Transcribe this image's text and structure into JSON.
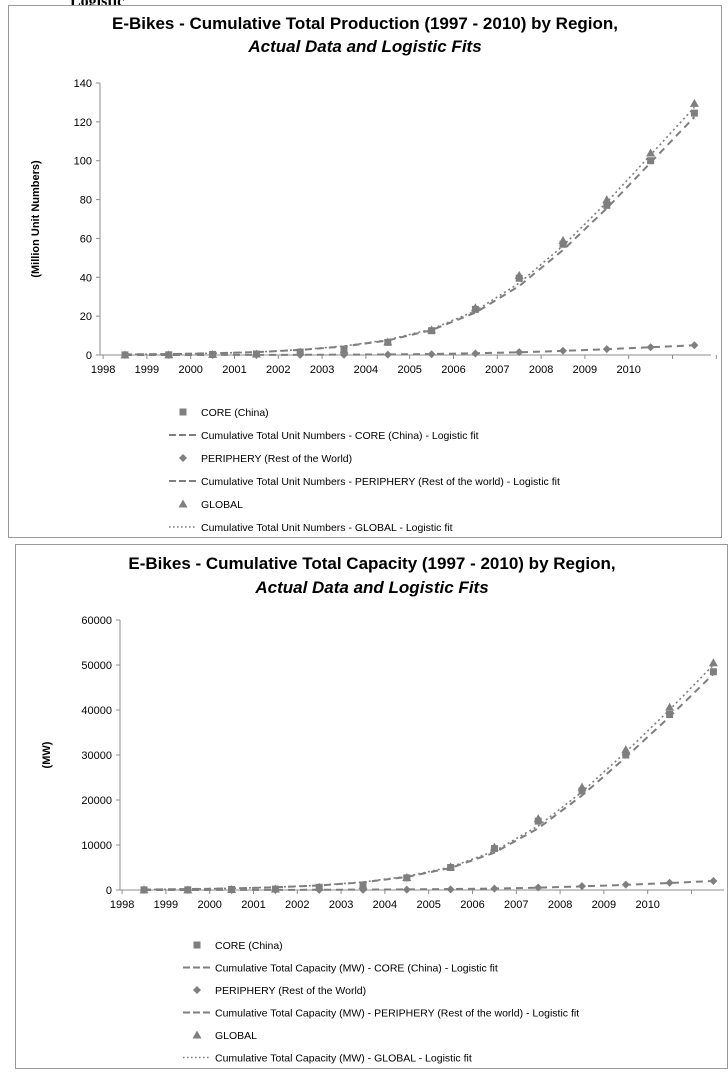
{
  "page": {
    "top_cut_text": "Logistic"
  },
  "charts": [
    {
      "title_line1": "E-Bikes - Cumulative Total Production (1997 - 2010) by Region,",
      "title_line2": "Actual Data and Logistic Fits",
      "ylabel": "(Million Unit Numbers)",
      "legend": [
        {
          "label": "CORE (China)",
          "kind": "square"
        },
        {
          "label": "Cumulative Total Unit Numbers - CORE (China) - Logistic fit",
          "kind": "dash"
        },
        {
          "label": "PERIPHERY (Rest of the World)",
          "kind": "diamond"
        },
        {
          "label": "Cumulative Total Unit Numbers - PERIPHERY (Rest of the world) - Logistic fit",
          "kind": "dash"
        },
        {
          "label": "GLOBAL",
          "kind": "triangle"
        },
        {
          "label": "Cumulative Total Unit Numbers - GLOBAL - Logistic fit",
          "kind": "dot"
        }
      ]
    },
    {
      "title_line1": "E-Bikes - Cumulative Total Capacity (1997 - 2010) by Region,",
      "title_line2": "Actual Data and Logistic Fits",
      "ylabel": "(MW)",
      "legend": [
        {
          "label": "CORE (China)",
          "kind": "square"
        },
        {
          "label": "Cumulative Total Capacity (MW) - CORE (China) - Logistic fit",
          "kind": "dash"
        },
        {
          "label": "PERIPHERY (Rest of the World)",
          "kind": "diamond"
        },
        {
          "label": "Cumulative Total Capacity (MW) - PERIPHERY (Rest of the world) - Logistic fit",
          "kind": "dash"
        },
        {
          "label": "GLOBAL",
          "kind": "triangle"
        },
        {
          "label": "Cumulative Total Capacity (MW) - GLOBAL - Logistic fit",
          "kind": "dot"
        }
      ]
    }
  ],
  "chart_data": [
    {
      "type": "line",
      "title": "E-Bikes - Cumulative Total Production (1997 - 2010) by Region, Actual Data and Logistic Fits",
      "xlabel": "",
      "ylabel": "(Million Unit Numbers)",
      "ylim": [
        0,
        140
      ],
      "yticks": [
        0,
        20,
        40,
        60,
        80,
        100,
        120,
        140
      ],
      "categories": [
        "1998",
        "1999",
        "2000",
        "2001",
        "2002",
        "2003",
        "2004",
        "2005",
        "2006",
        "2007",
        "2008",
        "2009",
        "2010",
        ""
      ],
      "grid": false,
      "legend_position": "bottom",
      "series": [
        {
          "name": "CORE (China)",
          "marker": "square",
          "color": "#7f7f7f",
          "values": [
            0.06,
            0.1,
            0.3,
            0.5,
            1.5,
            2.5,
            6.5,
            12.5,
            23.5,
            39.5,
            57,
            77,
            100,
            124.5
          ]
        },
        {
          "name": "PERIPHERY (Rest of the World)",
          "marker": "diamond",
          "color": "#7f7f7f",
          "values": [
            0,
            0,
            0,
            0.02,
            0.05,
            0.1,
            0.2,
            0.4,
            0.8,
            1.5,
            2.2,
            3.0,
            4.0,
            5.0
          ]
        },
        {
          "name": "GLOBAL",
          "marker": "triangle",
          "color": "#7f7f7f",
          "values": [
            0.06,
            0.1,
            0.3,
            0.52,
            1.55,
            2.6,
            6.7,
            12.9,
            24.3,
            41,
            59,
            80,
            104,
            129.5
          ]
        },
        {
          "name": "Cumulative Total Unit Numbers - CORE (China) - Logistic fit",
          "line": "dash",
          "color": "#7f7f7f",
          "values": [
            0.3,
            0.5,
            0.9,
            1.5,
            2.6,
            4.4,
            7.5,
            12.8,
            21.8,
            35.5,
            54,
            75.5,
            99,
            122.5
          ]
        },
        {
          "name": "Cumulative Total Unit Numbers - PERIPHERY (Rest of the world) - Logistic fit",
          "line": "dash",
          "color": "#7f7f7f",
          "values": [
            0.01,
            0.02,
            0.03,
            0.06,
            0.1,
            0.18,
            0.3,
            0.5,
            0.9,
            1.4,
            2.1,
            3.0,
            4.0,
            5.0
          ]
        },
        {
          "name": "Cumulative Total Unit Numbers - GLOBAL - Logistic fit",
          "line": "dot",
          "color": "#7f7f7f",
          "values": [
            0.3,
            0.5,
            0.9,
            1.5,
            2.7,
            4.6,
            7.8,
            13.3,
            22.7,
            37,
            56.2,
            78.6,
            103,
            127.5
          ]
        }
      ]
    },
    {
      "type": "line",
      "title": "E-Bikes - Cumulative Total Capacity (1997 - 2010) by Region, Actual Data and Logistic Fits",
      "xlabel": "",
      "ylabel": "(MW)",
      "ylim": [
        0,
        60000
      ],
      "yticks": [
        0,
        10000,
        20000,
        30000,
        40000,
        50000,
        60000
      ],
      "categories": [
        "1998",
        "1999",
        "2000",
        "2001",
        "2002",
        "2003",
        "2004",
        "2005",
        "2006",
        "2007",
        "2008",
        "2009",
        "2010",
        ""
      ],
      "grid": false,
      "legend_position": "bottom",
      "series": [
        {
          "name": "CORE (China)",
          "marker": "square",
          "color": "#7f7f7f",
          "values": [
            25,
            40,
            120,
            200,
            600,
            1000,
            2700,
            5000,
            9200,
            15300,
            22000,
            30000,
            39000,
            48500
          ]
        },
        {
          "name": "PERIPHERY (Rest of the World)",
          "marker": "diamond",
          "color": "#7f7f7f",
          "values": [
            0,
            0,
            0,
            10,
            20,
            40,
            80,
            150,
            300,
            550,
            850,
            1200,
            1600,
            2000
          ]
        },
        {
          "name": "GLOBAL",
          "marker": "triangle",
          "color": "#7f7f7f",
          "values": [
            25,
            40,
            120,
            210,
            620,
            1040,
            2780,
            5150,
            9500,
            15850,
            22850,
            31200,
            40600,
            50500
          ]
        },
        {
          "name": "Cumulative Total Capacity (MW) - CORE (China) - Logistic fit",
          "line": "dash",
          "color": "#7f7f7f",
          "values": [
            100,
            200,
            350,
            600,
            1000,
            1700,
            2900,
            4900,
            8300,
            13700,
            21000,
            29500,
            38500,
            48000
          ]
        },
        {
          "name": "Cumulative Total Capacity (MW) - PERIPHERY (Rest of the world) - Logistic fit",
          "line": "dash",
          "color": "#7f7f7f",
          "values": [
            5,
            10,
            20,
            30,
            50,
            80,
            130,
            210,
            330,
            520,
            800,
            1150,
            1550,
            2000
          ]
        },
        {
          "name": "Cumulative Total Capacity (MW) - GLOBAL - Logistic fit",
          "line": "dot",
          "color": "#7f7f7f",
          "values": [
            105,
            210,
            370,
            630,
            1050,
            1780,
            3030,
            5110,
            8630,
            14220,
            21800,
            30650,
            40050,
            50000
          ]
        }
      ]
    }
  ]
}
